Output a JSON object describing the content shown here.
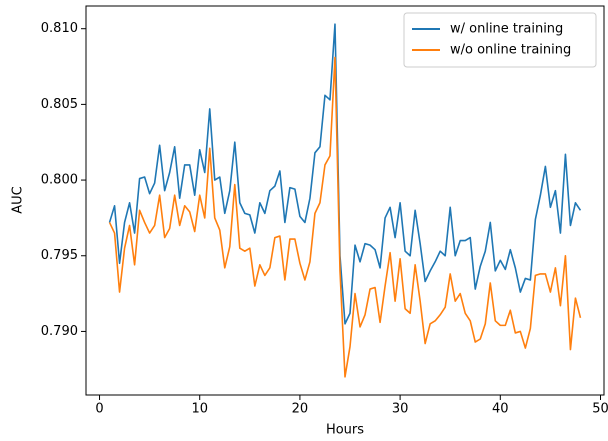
{
  "chart_data": {
    "type": "line",
    "x_label": "Hours",
    "y_label": "AUC",
    "x": [
      1,
      1.5,
      2,
      2.5,
      3,
      3.5,
      4,
      4.5,
      5,
      5.5,
      6,
      6.5,
      7,
      7.5,
      8,
      8.5,
      9,
      9.5,
      10,
      10.5,
      11,
      11.5,
      12,
      12.5,
      13,
      13.5,
      14,
      14.5,
      15,
      15.5,
      16,
      16.5,
      17,
      17.5,
      18,
      18.5,
      19,
      19.5,
      20,
      20.5,
      21,
      21.5,
      22,
      22.5,
      23,
      23.5,
      24,
      24.5,
      25,
      25.5,
      26,
      26.5,
      27,
      27.5,
      28,
      28.5,
      29,
      29.5,
      30,
      30.5,
      31,
      31.5,
      32,
      32.5,
      33,
      33.5,
      34,
      34.5,
      35,
      35.5,
      36,
      36.5,
      37,
      37.5,
      38,
      38.5,
      39,
      39.5,
      40,
      40.5,
      41,
      41.5,
      42,
      42.5,
      43,
      43.5,
      44,
      44.5,
      45,
      45.5,
      46,
      46.5,
      47,
      47.5,
      48
    ],
    "series": [
      {
        "name": "w/ online training",
        "color": "#1f77b4",
        "values": [
          0.7972,
          0.7983,
          0.7945,
          0.7972,
          0.7985,
          0.7965,
          0.8001,
          0.8002,
          0.7991,
          0.7998,
          0.8023,
          0.7993,
          0.8005,
          0.8022,
          0.7988,
          0.801,
          0.801,
          0.799,
          0.802,
          0.8005,
          0.8047,
          0.8,
          0.8002,
          0.7978,
          0.7993,
          0.8025,
          0.7985,
          0.7978,
          0.7977,
          0.7965,
          0.7985,
          0.7978,
          0.7993,
          0.7996,
          0.8006,
          0.7972,
          0.7995,
          0.7994,
          0.7976,
          0.7972,
          0.7988,
          0.8018,
          0.8022,
          0.8056,
          0.8053,
          0.8103,
          0.795,
          0.7905,
          0.7912,
          0.7957,
          0.7946,
          0.7958,
          0.7957,
          0.7954,
          0.7942,
          0.7975,
          0.7982,
          0.7962,
          0.7985,
          0.7953,
          0.795,
          0.798,
          0.7958,
          0.7933,
          0.794,
          0.7946,
          0.7953,
          0.795,
          0.7982,
          0.795,
          0.796,
          0.796,
          0.7962,
          0.7928,
          0.7943,
          0.7953,
          0.7972,
          0.794,
          0.7947,
          0.7941,
          0.7954,
          0.7942,
          0.7926,
          0.7935,
          0.7934,
          0.7974,
          0.799,
          0.8009,
          0.7982,
          0.7993,
          0.7965,
          0.8017,
          0.797,
          0.7985,
          0.798
        ]
      },
      {
        "name": "w/o online training",
        "color": "#ff7f0e",
        "values": [
          0.7972,
          0.7965,
          0.7926,
          0.7955,
          0.797,
          0.7944,
          0.798,
          0.7972,
          0.7965,
          0.797,
          0.799,
          0.7962,
          0.7968,
          0.799,
          0.797,
          0.7983,
          0.7979,
          0.7966,
          0.799,
          0.7975,
          0.8021,
          0.7975,
          0.7967,
          0.7942,
          0.7956,
          0.7997,
          0.7955,
          0.7953,
          0.7955,
          0.793,
          0.7944,
          0.7937,
          0.7942,
          0.7962,
          0.7963,
          0.7934,
          0.7961,
          0.7961,
          0.7945,
          0.7934,
          0.7946,
          0.7978,
          0.7985,
          0.801,
          0.8016,
          0.8081,
          0.794,
          0.787,
          0.789,
          0.7925,
          0.7903,
          0.7911,
          0.7928,
          0.7929,
          0.7906,
          0.793,
          0.7952,
          0.792,
          0.7948,
          0.7915,
          0.7912,
          0.7944,
          0.792,
          0.7892,
          0.7905,
          0.7907,
          0.7911,
          0.7916,
          0.7938,
          0.792,
          0.7925,
          0.7912,
          0.7907,
          0.7893,
          0.7895,
          0.7905,
          0.7932,
          0.7907,
          0.7904,
          0.7904,
          0.7914,
          0.7899,
          0.79,
          0.7889,
          0.7902,
          0.7937,
          0.7938,
          0.7938,
          0.7926,
          0.7942,
          0.7917,
          0.795,
          0.7888,
          0.7922,
          0.7909
        ]
      }
    ],
    "xlim": [
      -1.35,
      50.35
    ],
    "xticks": [
      0,
      10,
      20,
      30,
      40,
      50
    ],
    "ylim": [
      0.7858,
      0.8115
    ],
    "yticks": [
      {
        "value": 0.79,
        "label": "0.790"
      },
      0.795,
      {
        "value": 0.8,
        "label": "0.800"
      },
      0.805,
      {
        "value": 0.81,
        "label": "0.810"
      }
    ],
    "legend": "upper right",
    "grid": false
  }
}
